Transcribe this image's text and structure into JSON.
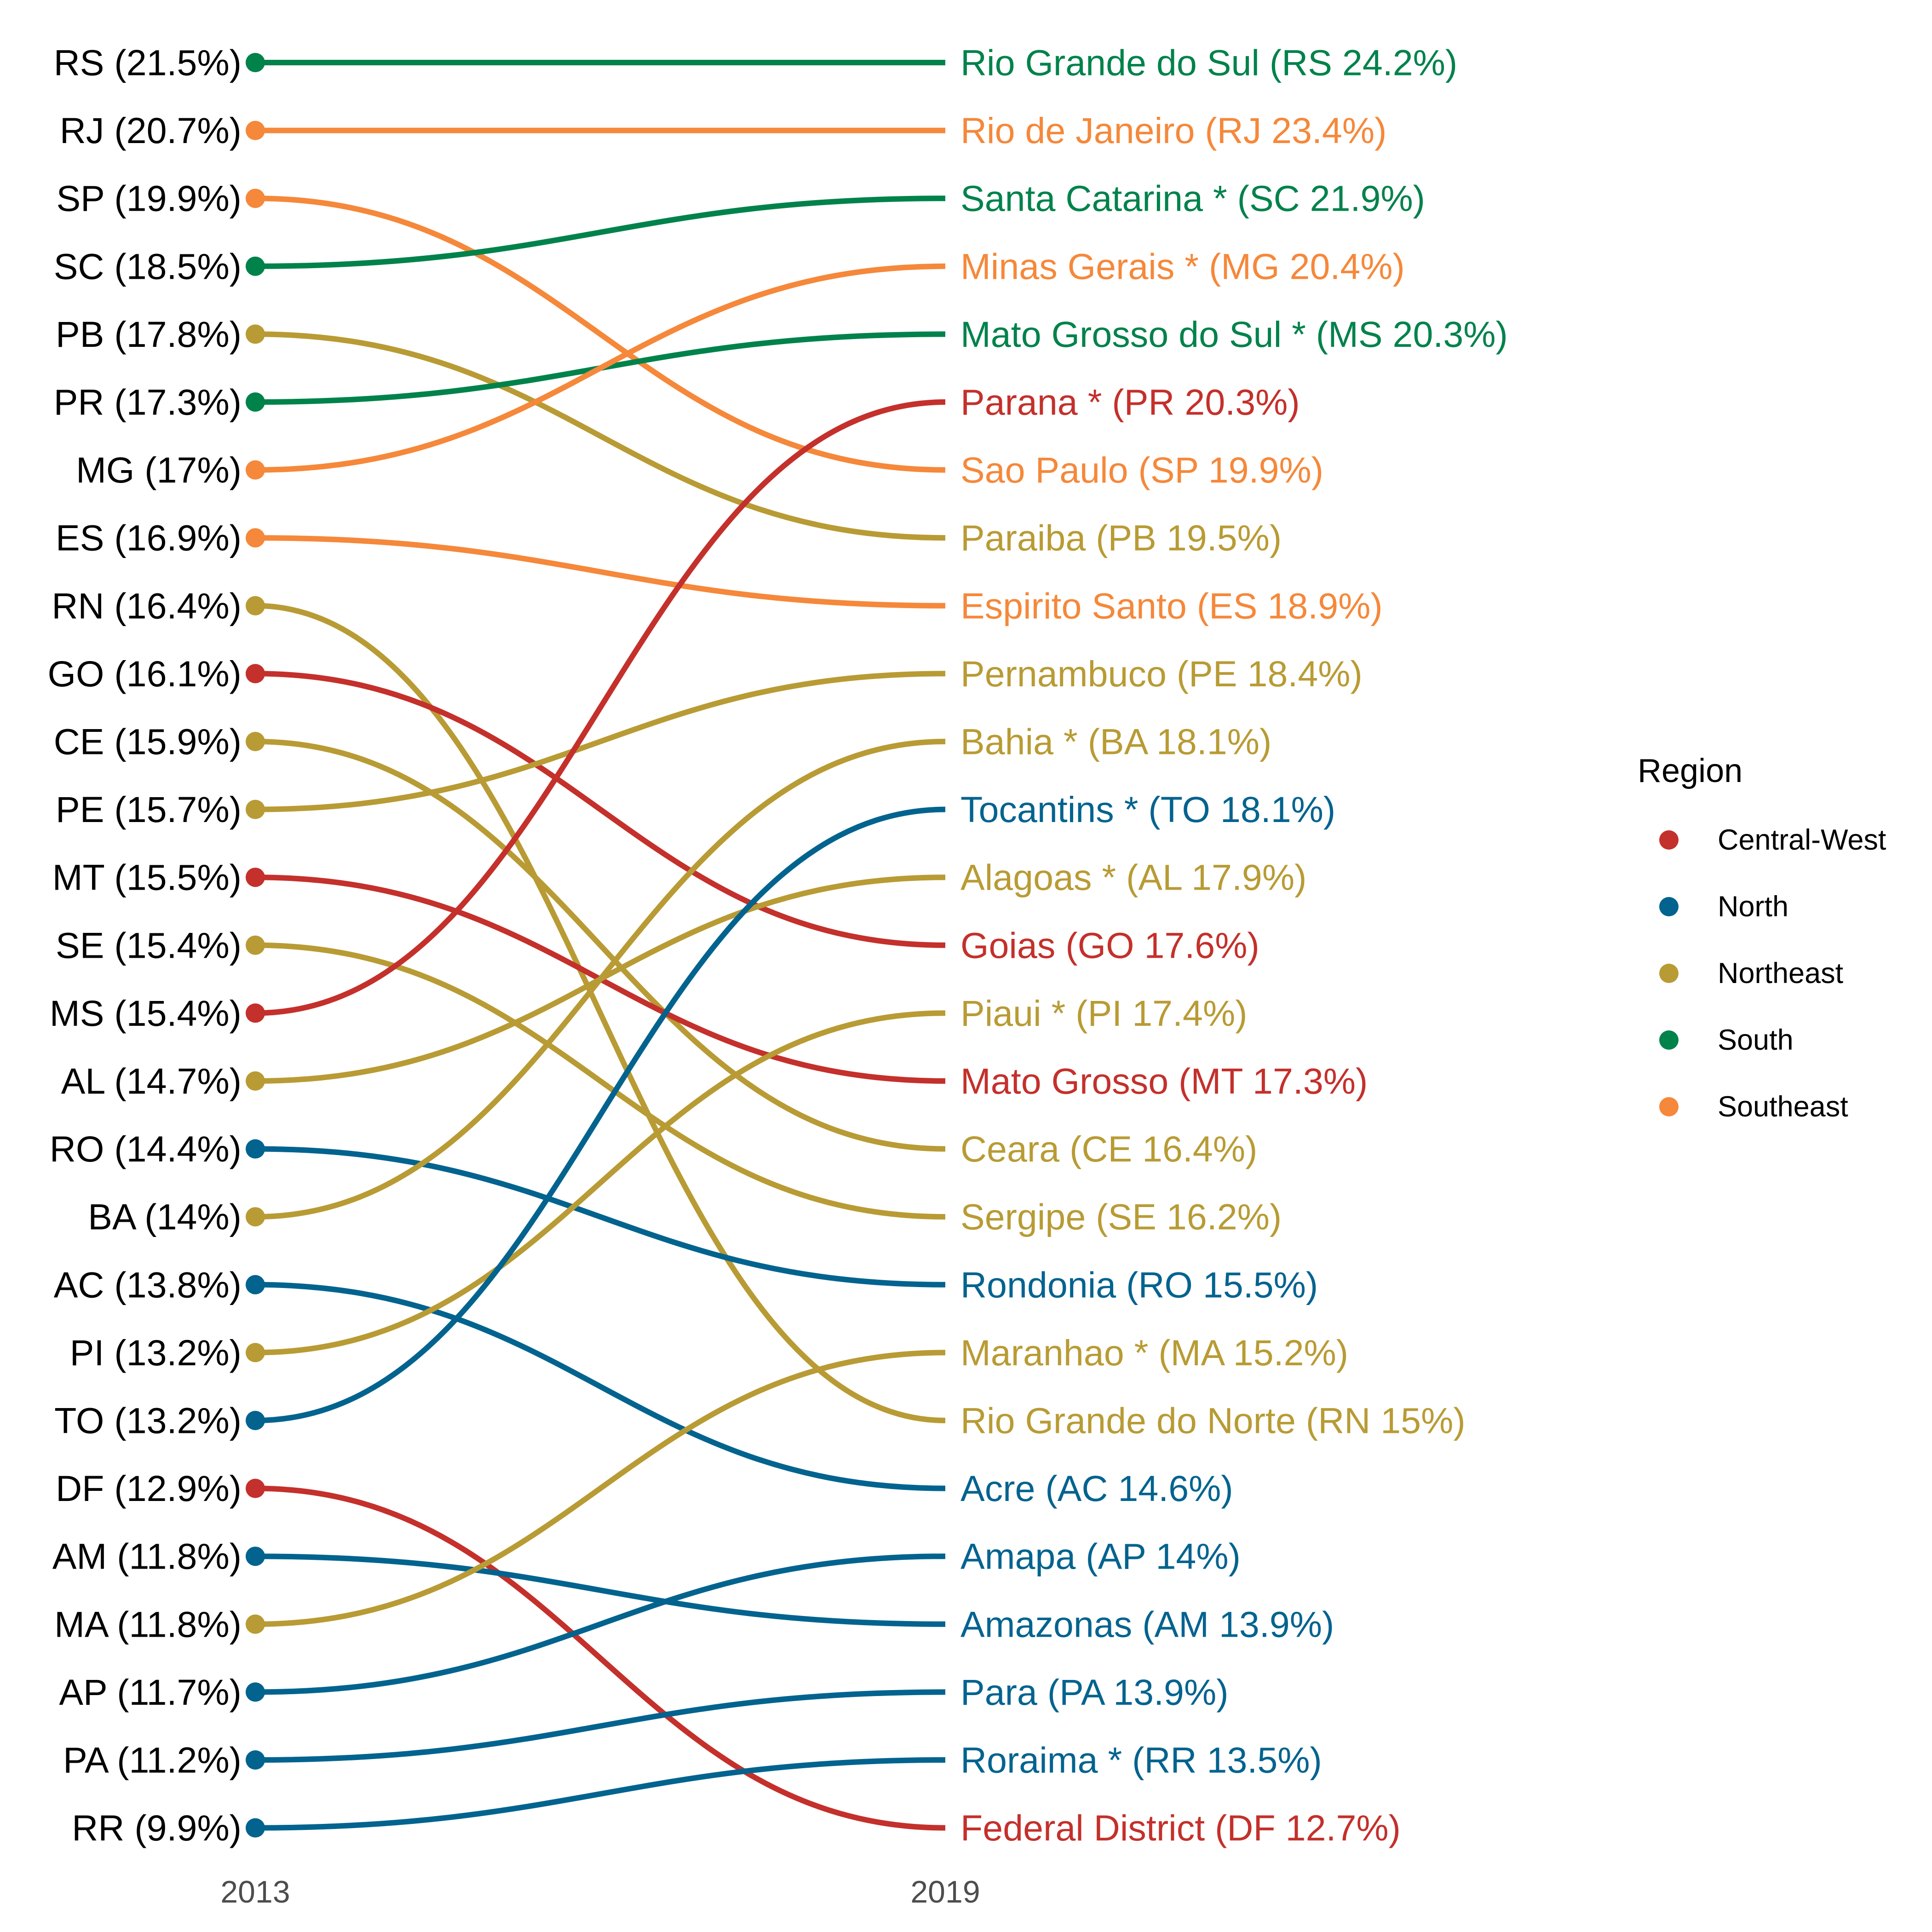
{
  "chart_data": {
    "type": "slope",
    "x": [
      "2013",
      "2019"
    ],
    "legend": {
      "title": "Region",
      "placement": "right",
      "entries": [
        {
          "name": "Central-West",
          "color": "#c4302b"
        },
        {
          "name": "North",
          "color": "#02638f"
        },
        {
          "name": "Northeast",
          "color": "#b89b34"
        },
        {
          "name": "South",
          "color": "#00824b"
        },
        {
          "name": "Southeast",
          "color": "#f5883a"
        }
      ]
    },
    "left_labels": [
      "RS (21.5%)",
      "RJ (20.7%)",
      "SP (19.9%)",
      "SC (18.5%)",
      "PB (17.8%)",
      "PR (17.3%)",
      "MG (17%)",
      "ES (16.9%)",
      "RN (16.4%)",
      "GO (16.1%)",
      "CE (15.9%)",
      "PE (15.7%)",
      "MT (15.5%)",
      "SE (15.4%)",
      "MS (15.4%)",
      "AL (14.7%)",
      "RO (14.4%)",
      "BA (14%)",
      "AC  (13.8%)",
      "PI (13.2%)",
      "TO (13.2%)",
      "DF (12.9%)",
      "AM (11.8%)",
      "MA (11.8%)",
      "AP (11.7%)",
      "PA (11.2%)",
      "RR (9.9%)"
    ],
    "right_labels": [
      "Rio Grande do Sul (RS 24.2%)",
      "Rio de Janeiro (RJ 23.4%)",
      "Santa Catarina * (SC 21.9%)",
      "Minas Gerais * (MG 20.4%)",
      "Mato Grosso do Sul * (MS 20.3%)",
      "Parana * (PR 20.3%)",
      "Sao Paulo (SP 19.9%)",
      "Paraiba (PB 19.5%)",
      "Espirito Santo (ES 18.9%)",
      "Pernambuco (PE 18.4%)",
      "Bahia * (BA 18.1%)",
      "Tocantins * (TO 18.1%)",
      "Alagoas * (AL 17.9%)",
      "Goias (GO 17.6%)",
      "Piaui * (PI 17.4%)",
      "Mato Grosso (MT 17.3%)",
      "Ceara (CE 16.4%)",
      "Sergipe (SE 16.2%)",
      "Rondonia (RO 15.5%)",
      "Maranhao * (MA 15.2%)",
      "Rio Grande do Norte (RN 15%)",
      "Acre (AC  14.6%)",
      "Amapa (AP 14%)",
      "Amazonas (AM 13.9%)",
      "Para (PA 13.9%)",
      "Roraima * (RR 13.5%)",
      "Federal District (DF 12.7%)"
    ],
    "series": [
      {
        "name": "RS",
        "region": "South",
        "values": [
          21.5,
          24.2
        ]
      },
      {
        "name": "RJ",
        "region": "Southeast",
        "values": [
          20.7,
          23.4
        ]
      },
      {
        "name": "SP",
        "region": "Southeast",
        "values": [
          19.9,
          19.9
        ]
      },
      {
        "name": "SC",
        "region": "South",
        "values": [
          18.5,
          21.9
        ]
      },
      {
        "name": "PB",
        "region": "Northeast",
        "values": [
          17.8,
          19.5
        ]
      },
      {
        "name": "PR",
        "region": "South",
        "values": [
          17.3,
          20.3
        ]
      },
      {
        "name": "MG",
        "region": "Southeast",
        "values": [
          17,
          20.4
        ]
      },
      {
        "name": "ES",
        "region": "Southeast",
        "values": [
          16.9,
          18.9
        ]
      },
      {
        "name": "RN",
        "region": "Northeast",
        "values": [
          16.4,
          15
        ]
      },
      {
        "name": "GO",
        "region": "Central-West",
        "values": [
          16.1,
          17.6
        ]
      },
      {
        "name": "CE",
        "region": "Northeast",
        "values": [
          15.9,
          16.4
        ]
      },
      {
        "name": "PE",
        "region": "Northeast",
        "values": [
          15.7,
          18.4
        ]
      },
      {
        "name": "MT",
        "region": "Central-West",
        "values": [
          15.5,
          17.3
        ]
      },
      {
        "name": "SE",
        "region": "Northeast",
        "values": [
          15.4,
          16.2
        ]
      },
      {
        "name": "MS",
        "region": "Central-West",
        "values": [
          15.4,
          20.3
        ]
      },
      {
        "name": "AL",
        "region": "Northeast",
        "values": [
          14.7,
          17.9
        ]
      },
      {
        "name": "RO",
        "region": "North",
        "values": [
          14.4,
          15.5
        ]
      },
      {
        "name": "BA",
        "region": "Northeast",
        "values": [
          14,
          18.1
        ]
      },
      {
        "name": "AC",
        "region": "North",
        "values": [
          13.8,
          14.6
        ]
      },
      {
        "name": "PI",
        "region": "Northeast",
        "values": [
          13.2,
          17.4
        ]
      },
      {
        "name": "TO",
        "region": "North",
        "values": [
          13.2,
          18.1
        ]
      },
      {
        "name": "DF",
        "region": "Central-West",
        "values": [
          12.9,
          12.7
        ]
      },
      {
        "name": "AM",
        "region": "North",
        "values": [
          11.8,
          13.9
        ]
      },
      {
        "name": "MA",
        "region": "Northeast",
        "values": [
          11.8,
          15.2
        ]
      },
      {
        "name": "AP",
        "region": "North",
        "values": [
          11.7,
          14
        ]
      },
      {
        "name": "PA",
        "region": "North",
        "values": [
          11.2,
          13.9
        ]
      },
      {
        "name": "RR",
        "region": "North",
        "values": [
          9.9,
          13.5
        ]
      }
    ]
  }
}
